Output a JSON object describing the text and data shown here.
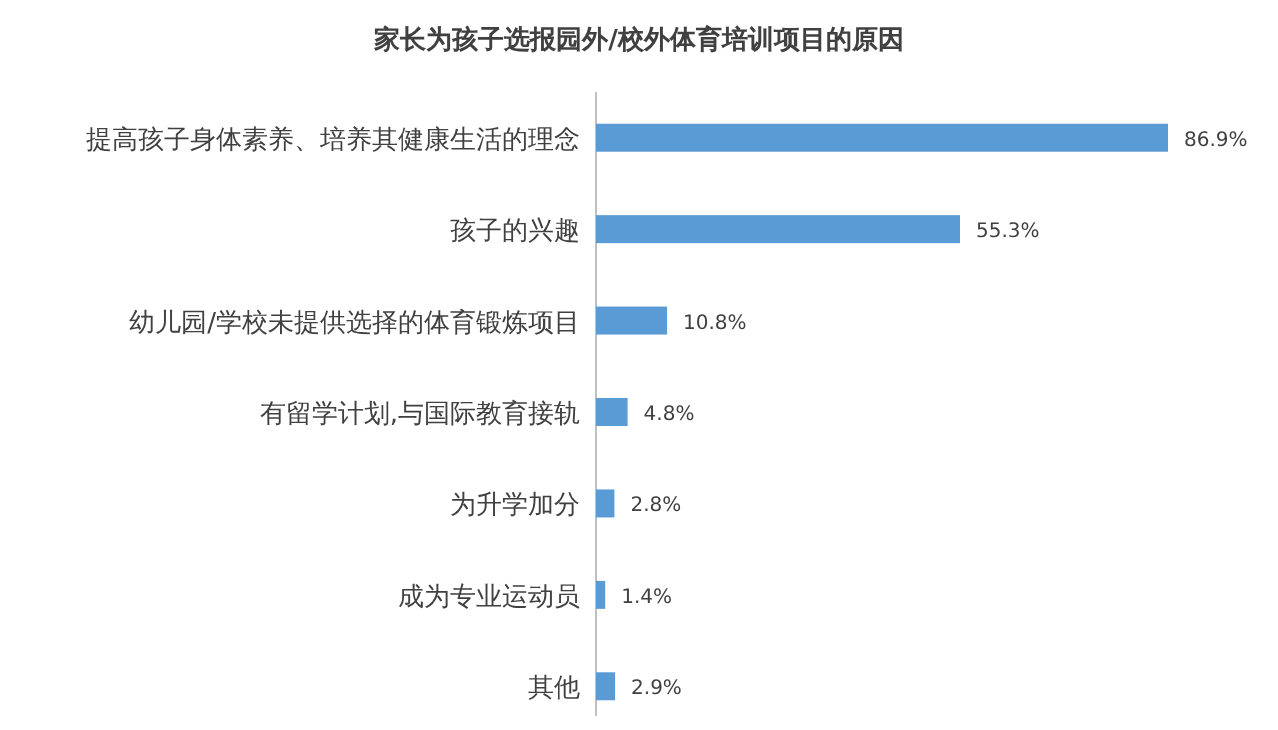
{
  "chart_data": {
    "type": "bar",
    "orientation": "horizontal",
    "title": "家长为孩子选报园外/校外体育培训项目的原因",
    "categories": [
      "提高孩子身体素养、培养其健康生活的理念",
      "孩子的兴趣",
      "幼儿园/学校未提供选择的体育锻炼项目",
      "有留学计划,与国际教育接轨",
      "为升学加分",
      "成为专业运动员",
      "其他"
    ],
    "values": [
      86.9,
      55.3,
      10.8,
      4.8,
      2.8,
      1.4,
      2.9
    ],
    "value_labels": [
      "86.9%",
      "55.3%",
      "10.8%",
      "4.8%",
      "2.8%",
      "1.4%",
      "2.9%"
    ],
    "color": "#5b9bd5"
  }
}
